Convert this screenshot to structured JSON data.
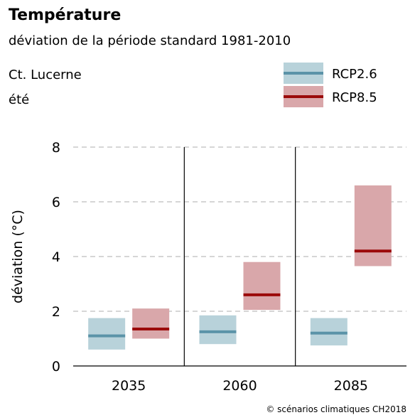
{
  "title": "Température",
  "subtitle": "déviation de la période standard 1981-2010",
  "region": "Ct. Lucerne",
  "season": "été",
  "credit": "© scénarios climatiques CH2018",
  "chart_data": {
    "type": "box",
    "ylabel": "déviation (°C)",
    "ylim": [
      0,
      8
    ],
    "yticks": [
      0,
      2,
      4,
      6,
      8
    ],
    "grid": "horizontal dashed",
    "legend_position": "top-right",
    "categories": [
      "2035",
      "2060",
      "2085"
    ],
    "series": [
      {
        "name": "RCP2.6",
        "box_color": "#b8d2da",
        "median_color": "#5b93a8",
        "low": [
          0.6,
          0.8,
          0.75
        ],
        "median": [
          1.1,
          1.25,
          1.2
        ],
        "high": [
          1.75,
          1.85,
          1.75
        ]
      },
      {
        "name": "RCP8.5",
        "box_color": "#d9a7aa",
        "median_color": "#9b0a0a",
        "low": [
          1.0,
          2.05,
          3.65
        ],
        "median": [
          1.35,
          2.6,
          4.2
        ],
        "high": [
          2.1,
          3.8,
          6.6
        ]
      }
    ]
  }
}
